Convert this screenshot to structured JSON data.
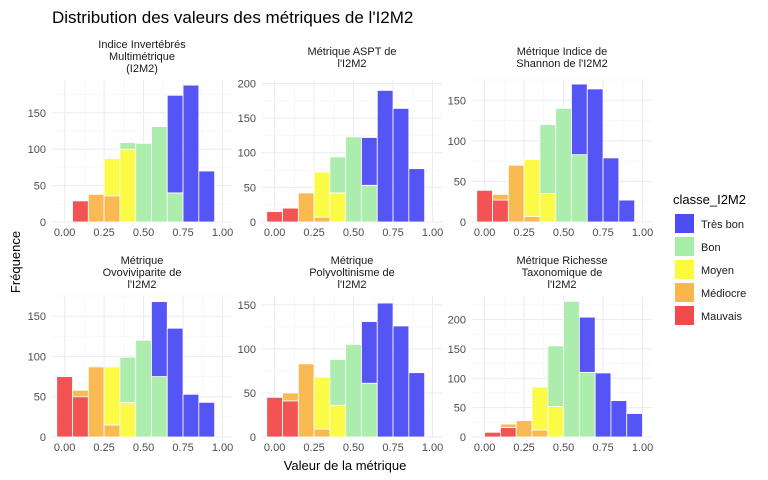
{
  "chart_data": {
    "type": "bar",
    "title": "Distribution des valeurs des métriques de l'I2M2",
    "xlabel": "Valeur de la métrique",
    "ylabel": "Fréquence",
    "legend": {
      "title": "classe_I2M2",
      "position": "right",
      "items": [
        {
          "name": "Très bon",
          "color": "#4c4cf5"
        },
        {
          "name": "Bon",
          "color": "#a8ecaa"
        },
        {
          "name": "Moyen",
          "color": "#fbfb3c"
        },
        {
          "name": "Médiocre",
          "color": "#f9b64a"
        },
        {
          "name": "Mauvais",
          "color": "#f24a4a"
        }
      ]
    },
    "x_ticks": [
      "0.00",
      "0.25",
      "0.50",
      "0.75",
      "1.00"
    ],
    "xlim": [
      -0.08,
      1.06
    ],
    "grid": true,
    "panels": [
      {
        "label_lines": [
          "Indice Invertébrés",
          "Multimétrique",
          "(I2M2)"
        ],
        "ylim": [
          0,
          195
        ],
        "y_ticks": [
          0,
          50,
          100,
          150
        ],
        "bars": [
          {
            "x0": 0.05,
            "x1": 0.15,
            "segments": [
              {
                "class": "Mauvais",
                "value": 29
              }
            ]
          },
          {
            "x0": 0.15,
            "x1": 0.25,
            "segments": [
              {
                "class": "Médiocre",
                "value": 38
              }
            ]
          },
          {
            "x0": 0.25,
            "x1": 0.35,
            "segments": [
              {
                "class": "Médiocre",
                "value": 36
              },
              {
                "class": "Moyen",
                "value": 51
              }
            ]
          },
          {
            "x0": 0.35,
            "x1": 0.45,
            "segments": [
              {
                "class": "Moyen",
                "value": 100
              },
              {
                "class": "Bon",
                "value": 9
              }
            ]
          },
          {
            "x0": 0.45,
            "x1": 0.55,
            "segments": [
              {
                "class": "Bon",
                "value": 108
              }
            ]
          },
          {
            "x0": 0.55,
            "x1": 0.65,
            "segments": [
              {
                "class": "Bon",
                "value": 131
              }
            ]
          },
          {
            "x0": 0.65,
            "x1": 0.75,
            "segments": [
              {
                "class": "Bon",
                "value": 40
              },
              {
                "class": "Très bon",
                "value": 134
              }
            ]
          },
          {
            "x0": 0.75,
            "x1": 0.85,
            "segments": [
              {
                "class": "Très bon",
                "value": 188
              }
            ]
          },
          {
            "x0": 0.85,
            "x1": 0.95,
            "segments": [
              {
                "class": "Très bon",
                "value": 70
              }
            ]
          }
        ]
      },
      {
        "label_lines": [
          "Métrique ASPT de",
          "l'I2M2"
        ],
        "ylim": [
          0,
          205
        ],
        "y_ticks": [
          0,
          50,
          100,
          150,
          200
        ],
        "bars": [
          {
            "x0": -0.05,
            "x1": 0.05,
            "segments": [
              {
                "class": "Mauvais",
                "value": 15
              }
            ]
          },
          {
            "x0": 0.05,
            "x1": 0.15,
            "segments": [
              {
                "class": "Mauvais",
                "value": 20
              }
            ]
          },
          {
            "x0": 0.15,
            "x1": 0.25,
            "segments": [
              {
                "class": "Médiocre",
                "value": 42
              }
            ]
          },
          {
            "x0": 0.25,
            "x1": 0.35,
            "segments": [
              {
                "class": "Médiocre",
                "value": 7
              },
              {
                "class": "Moyen",
                "value": 65
              }
            ]
          },
          {
            "x0": 0.35,
            "x1": 0.45,
            "segments": [
              {
                "class": "Moyen",
                "value": 42
              },
              {
                "class": "Bon",
                "value": 52
              }
            ]
          },
          {
            "x0": 0.45,
            "x1": 0.55,
            "segments": [
              {
                "class": "Bon",
                "value": 123
              }
            ]
          },
          {
            "x0": 0.55,
            "x1": 0.65,
            "segments": [
              {
                "class": "Bon",
                "value": 53
              },
              {
                "class": "Très bon",
                "value": 69
              }
            ]
          },
          {
            "x0": 0.65,
            "x1": 0.75,
            "segments": [
              {
                "class": "Très bon",
                "value": 190
              }
            ]
          },
          {
            "x0": 0.75,
            "x1": 0.85,
            "segments": [
              {
                "class": "Très bon",
                "value": 164
              }
            ]
          },
          {
            "x0": 0.85,
            "x1": 0.95,
            "segments": [
              {
                "class": "Très bon",
                "value": 77
              }
            ]
          }
        ]
      },
      {
        "label_lines": [
          "Métrique Indice de",
          "Shannon de l'I2M2"
        ],
        "ylim": [
          0,
          175
        ],
        "y_ticks": [
          0,
          50,
          100,
          150
        ],
        "bars": [
          {
            "x0": -0.05,
            "x1": 0.05,
            "segments": [
              {
                "class": "Mauvais",
                "value": 39
              }
            ]
          },
          {
            "x0": 0.05,
            "x1": 0.15,
            "segments": [
              {
                "class": "Mauvais",
                "value": 27
              },
              {
                "class": "Médiocre",
                "value": 7
              }
            ]
          },
          {
            "x0": 0.15,
            "x1": 0.25,
            "segments": [
              {
                "class": "Médiocre",
                "value": 70
              }
            ]
          },
          {
            "x0": 0.25,
            "x1": 0.35,
            "segments": [
              {
                "class": "Médiocre",
                "value": 7
              },
              {
                "class": "Moyen",
                "value": 70
              }
            ]
          },
          {
            "x0": 0.35,
            "x1": 0.45,
            "segments": [
              {
                "class": "Moyen",
                "value": 35
              },
              {
                "class": "Bon",
                "value": 85
              }
            ]
          },
          {
            "x0": 0.45,
            "x1": 0.55,
            "segments": [
              {
                "class": "Bon",
                "value": 140
              }
            ]
          },
          {
            "x0": 0.55,
            "x1": 0.65,
            "segments": [
              {
                "class": "Bon",
                "value": 83
              },
              {
                "class": "Très bon",
                "value": 87
              }
            ]
          },
          {
            "x0": 0.65,
            "x1": 0.75,
            "segments": [
              {
                "class": "Très bon",
                "value": 164
              }
            ]
          },
          {
            "x0": 0.75,
            "x1": 0.85,
            "segments": [
              {
                "class": "Très bon",
                "value": 79
              }
            ]
          },
          {
            "x0": 0.85,
            "x1": 0.95,
            "segments": [
              {
                "class": "Très bon",
                "value": 27
              }
            ]
          }
        ]
      },
      {
        "label_lines": [
          "Métrique",
          "Ovoviviparite de",
          "l'I2M2"
        ],
        "ylim": [
          0,
          175
        ],
        "y_ticks": [
          0,
          50,
          100,
          150
        ],
        "bars": [
          {
            "x0": -0.05,
            "x1": 0.05,
            "segments": [
              {
                "class": "Mauvais",
                "value": 75
              }
            ]
          },
          {
            "x0": 0.05,
            "x1": 0.15,
            "segments": [
              {
                "class": "Mauvais",
                "value": 50
              },
              {
                "class": "Médiocre",
                "value": 8
              }
            ]
          },
          {
            "x0": 0.15,
            "x1": 0.25,
            "segments": [
              {
                "class": "Médiocre",
                "value": 87
              }
            ]
          },
          {
            "x0": 0.25,
            "x1": 0.35,
            "segments": [
              {
                "class": "Médiocre",
                "value": 15
              },
              {
                "class": "Moyen",
                "value": 72
              }
            ]
          },
          {
            "x0": 0.35,
            "x1": 0.45,
            "segments": [
              {
                "class": "Moyen",
                "value": 43
              },
              {
                "class": "Bon",
                "value": 56
              }
            ]
          },
          {
            "x0": 0.45,
            "x1": 0.55,
            "segments": [
              {
                "class": "Bon",
                "value": 120
              }
            ]
          },
          {
            "x0": 0.55,
            "x1": 0.65,
            "segments": [
              {
                "class": "Bon",
                "value": 75
              },
              {
                "class": "Très bon",
                "value": 93
              }
            ]
          },
          {
            "x0": 0.65,
            "x1": 0.75,
            "segments": [
              {
                "class": "Très bon",
                "value": 135
              }
            ]
          },
          {
            "x0": 0.75,
            "x1": 0.85,
            "segments": [
              {
                "class": "Très bon",
                "value": 53
              }
            ]
          },
          {
            "x0": 0.85,
            "x1": 0.95,
            "segments": [
              {
                "class": "Très bon",
                "value": 43
              }
            ]
          }
        ]
      },
      {
        "label_lines": [
          "Métrique",
          "Polyvoltinisme de",
          "l'I2M2"
        ],
        "ylim": [
          0,
          160
        ],
        "y_ticks": [
          0,
          50,
          100,
          150
        ],
        "bars": [
          {
            "x0": -0.05,
            "x1": 0.05,
            "segments": [
              {
                "class": "Mauvais",
                "value": 45
              }
            ]
          },
          {
            "x0": 0.05,
            "x1": 0.15,
            "segments": [
              {
                "class": "Mauvais",
                "value": 41
              },
              {
                "class": "Médiocre",
                "value": 9
              }
            ]
          },
          {
            "x0": 0.15,
            "x1": 0.25,
            "segments": [
              {
                "class": "Médiocre",
                "value": 83
              }
            ]
          },
          {
            "x0": 0.25,
            "x1": 0.35,
            "segments": [
              {
                "class": "Médiocre",
                "value": 9
              },
              {
                "class": "Moyen",
                "value": 59
              }
            ]
          },
          {
            "x0": 0.35,
            "x1": 0.45,
            "segments": [
              {
                "class": "Moyen",
                "value": 36
              },
              {
                "class": "Bon",
                "value": 52
              }
            ]
          },
          {
            "x0": 0.45,
            "x1": 0.55,
            "segments": [
              {
                "class": "Bon",
                "value": 105
              }
            ]
          },
          {
            "x0": 0.55,
            "x1": 0.65,
            "segments": [
              {
                "class": "Bon",
                "value": 61
              },
              {
                "class": "Très bon",
                "value": 70
              }
            ]
          },
          {
            "x0": 0.65,
            "x1": 0.75,
            "segments": [
              {
                "class": "Très bon",
                "value": 152
              }
            ]
          },
          {
            "x0": 0.75,
            "x1": 0.85,
            "segments": [
              {
                "class": "Très bon",
                "value": 126
              }
            ]
          },
          {
            "x0": 0.85,
            "x1": 0.95,
            "segments": [
              {
                "class": "Très bon",
                "value": 73
              }
            ]
          }
        ]
      },
      {
        "label_lines": [
          "Métrique Richesse",
          "Taxonomique de",
          "l'I2M2"
        ],
        "ylim": [
          0,
          240
        ],
        "y_ticks": [
          0,
          50,
          100,
          150,
          200
        ],
        "bars": [
          {
            "x0": 0.0,
            "x1": 0.1,
            "segments": [
              {
                "class": "Mauvais",
                "value": 8
              }
            ]
          },
          {
            "x0": 0.1,
            "x1": 0.2,
            "segments": [
              {
                "class": "Mauvais",
                "value": 16
              },
              {
                "class": "Médiocre",
                "value": 6
              }
            ]
          },
          {
            "x0": 0.2,
            "x1": 0.3,
            "segments": [
              {
                "class": "Médiocre",
                "value": 28
              }
            ]
          },
          {
            "x0": 0.3,
            "x1": 0.4,
            "segments": [
              {
                "class": "Médiocre",
                "value": 12
              },
              {
                "class": "Moyen",
                "value": 73
              }
            ]
          },
          {
            "x0": 0.4,
            "x1": 0.5,
            "segments": [
              {
                "class": "Moyen",
                "value": 52
              },
              {
                "class": "Bon",
                "value": 103
              }
            ]
          },
          {
            "x0": 0.5,
            "x1": 0.6,
            "segments": [
              {
                "class": "Bon",
                "value": 231
              }
            ]
          },
          {
            "x0": 0.6,
            "x1": 0.7,
            "segments": [
              {
                "class": "Bon",
                "value": 110
              },
              {
                "class": "Très bon",
                "value": 94
              }
            ]
          },
          {
            "x0": 0.7,
            "x1": 0.8,
            "segments": [
              {
                "class": "Très bon",
                "value": 109
              }
            ]
          },
          {
            "x0": 0.8,
            "x1": 0.9,
            "segments": [
              {
                "class": "Très bon",
                "value": 62
              }
            ]
          },
          {
            "x0": 0.9,
            "x1": 1.0,
            "segments": [
              {
                "class": "Très bon",
                "value": 40
              }
            ]
          }
        ]
      }
    ]
  }
}
